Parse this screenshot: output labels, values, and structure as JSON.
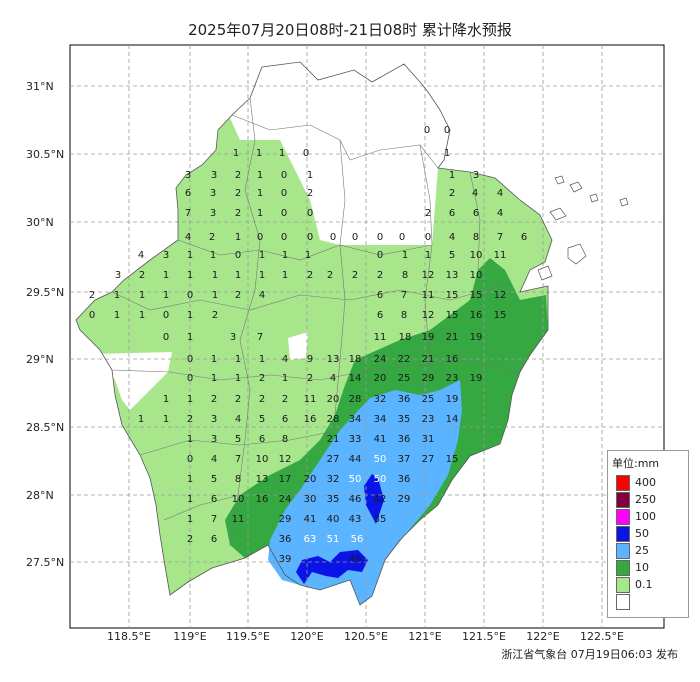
{
  "title": "2025年07月20日08时-21日08时 累计降水预报",
  "footer": "浙江省气象台 07月19日06:03 发布",
  "lat_labels": [
    "31°N",
    "30.5°N",
    "30°N",
    "29.5°N",
    "29°N",
    "28.5°N",
    "28°N",
    "27.5°N"
  ],
  "lon_labels": [
    "118.5°E",
    "119°E",
    "119.5°E",
    "120°E",
    "120.5°E",
    "121°E",
    "121.5°E",
    "122°E",
    "122.5°E"
  ],
  "legend": {
    "title": "单位:mm",
    "items": [
      {
        "label": "400",
        "color": "#ff0000"
      },
      {
        "label": "250",
        "color": "#80003f"
      },
      {
        "label": "100",
        "color": "#ff00ff"
      },
      {
        "label": "50",
        "color": "#0a14e6"
      },
      {
        "label": "25",
        "color": "#5ab4ff"
      },
      {
        "label": "10",
        "color": "#35a842"
      },
      {
        "label": "0.1",
        "color": "#a8e68c"
      },
      {
        "label": "",
        "color": "#ffffff"
      }
    ]
  },
  "rain_rows": [
    [
      "0",
      "0"
    ],
    [
      "1",
      "1",
      "1",
      "0",
      "1"
    ],
    [
      "3",
      "3",
      "2",
      "1",
      "0",
      "1",
      "1",
      "3"
    ],
    [
      "6",
      "3",
      "2",
      "1",
      "0",
      "2",
      "2",
      "4",
      "4"
    ],
    [
      "7",
      "3",
      "2",
      "1",
      "0",
      "0",
      "2",
      "6",
      "6",
      "4"
    ],
    [
      "4",
      "2",
      "1",
      "0",
      "0",
      "0",
      "0",
      "0",
      "0",
      "0",
      "0",
      "4",
      "8",
      "7",
      "6"
    ],
    [
      "4",
      "3",
      "1",
      "1",
      "0",
      "1",
      "1",
      "1",
      "0",
      "1",
      "1",
      "5",
      "10",
      "11"
    ],
    [
      "3",
      "2",
      "1",
      "1",
      "1",
      "1",
      "1",
      "1",
      "2",
      "2",
      "2",
      "2",
      "8",
      "12",
      "13",
      "10"
    ],
    [
      "2",
      "1",
      "1",
      "1",
      "0",
      "1",
      "2",
      "4",
      "6",
      "7",
      "11",
      "15",
      "15",
      "12"
    ],
    [
      "0",
      "1",
      "1",
      "0",
      "1",
      "2",
      "6",
      "8",
      "12",
      "15",
      "16",
      "15"
    ],
    [
      "0",
      "1",
      "3",
      "7",
      "11",
      "18",
      "19",
      "21",
      "19"
    ],
    [
      "0",
      "1",
      "1",
      "1",
      "4",
      "9",
      "13",
      "18",
      "24",
      "22",
      "21",
      "16"
    ],
    [
      "0",
      "1",
      "1",
      "2",
      "1",
      "2",
      "4",
      "14",
      "20",
      "25",
      "29",
      "23",
      "19"
    ],
    [
      "1",
      "1",
      "2",
      "2",
      "2",
      "2",
      "11",
      "20",
      "28",
      "32",
      "36",
      "25",
      "19"
    ],
    [
      "1",
      "1",
      "2",
      "3",
      "4",
      "5",
      "6",
      "16",
      "28",
      "34",
      "34",
      "35",
      "23",
      "14"
    ],
    [
      "1",
      "3",
      "5",
      "6",
      "8",
      "21",
      "33",
      "41",
      "36",
      "31"
    ],
    [
      "0",
      "4",
      "7",
      "10",
      "12",
      "27",
      "44",
      "50",
      "37",
      "27",
      "15"
    ],
    [
      "1",
      "5",
      "8",
      "13",
      "17",
      "20",
      "32",
      "50",
      "50",
      "36"
    ],
    [
      "1",
      "6",
      "10",
      "16",
      "24",
      "30",
      "35",
      "46",
      "42",
      "29"
    ],
    [
      "1",
      "7",
      "11",
      "29",
      "41",
      "40",
      "43",
      "35"
    ],
    [
      "2",
      "6",
      "36",
      "63",
      "51",
      "56"
    ],
    [
      "39",
      "46"
    ]
  ]
}
